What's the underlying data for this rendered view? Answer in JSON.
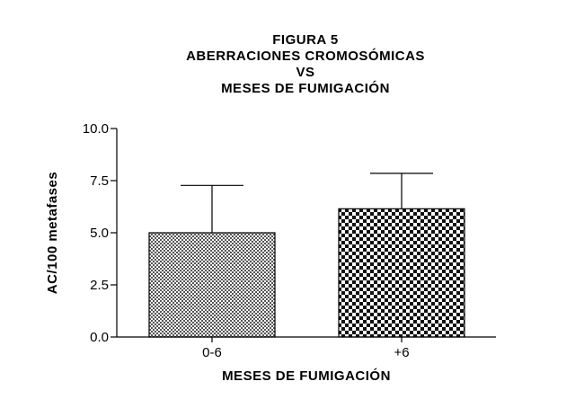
{
  "chart_data": {
    "type": "bar",
    "title_lines": [
      "FIGURA 5",
      "ABERRACIONES CROMOSÓMICAS",
      "VS",
      "MESES DE FUMIGACIÓN"
    ],
    "categories": [
      "0-6",
      "+6"
    ],
    "values": [
      5.0,
      6.15
    ],
    "error_upper": [
      7.27,
      7.85
    ],
    "xlabel": "MESES DE FUMIGACIÓN",
    "ylabel": "AC/100 metafases",
    "ylim": [
      0,
      10
    ],
    "yticks": [
      "0.0",
      "2.5",
      "5.0",
      "7.5",
      "10.0"
    ],
    "grid": false,
    "legend": "none",
    "bar_patterns": [
      "fine-checker",
      "coarse-checker"
    ],
    "bar_color": "#000000"
  }
}
